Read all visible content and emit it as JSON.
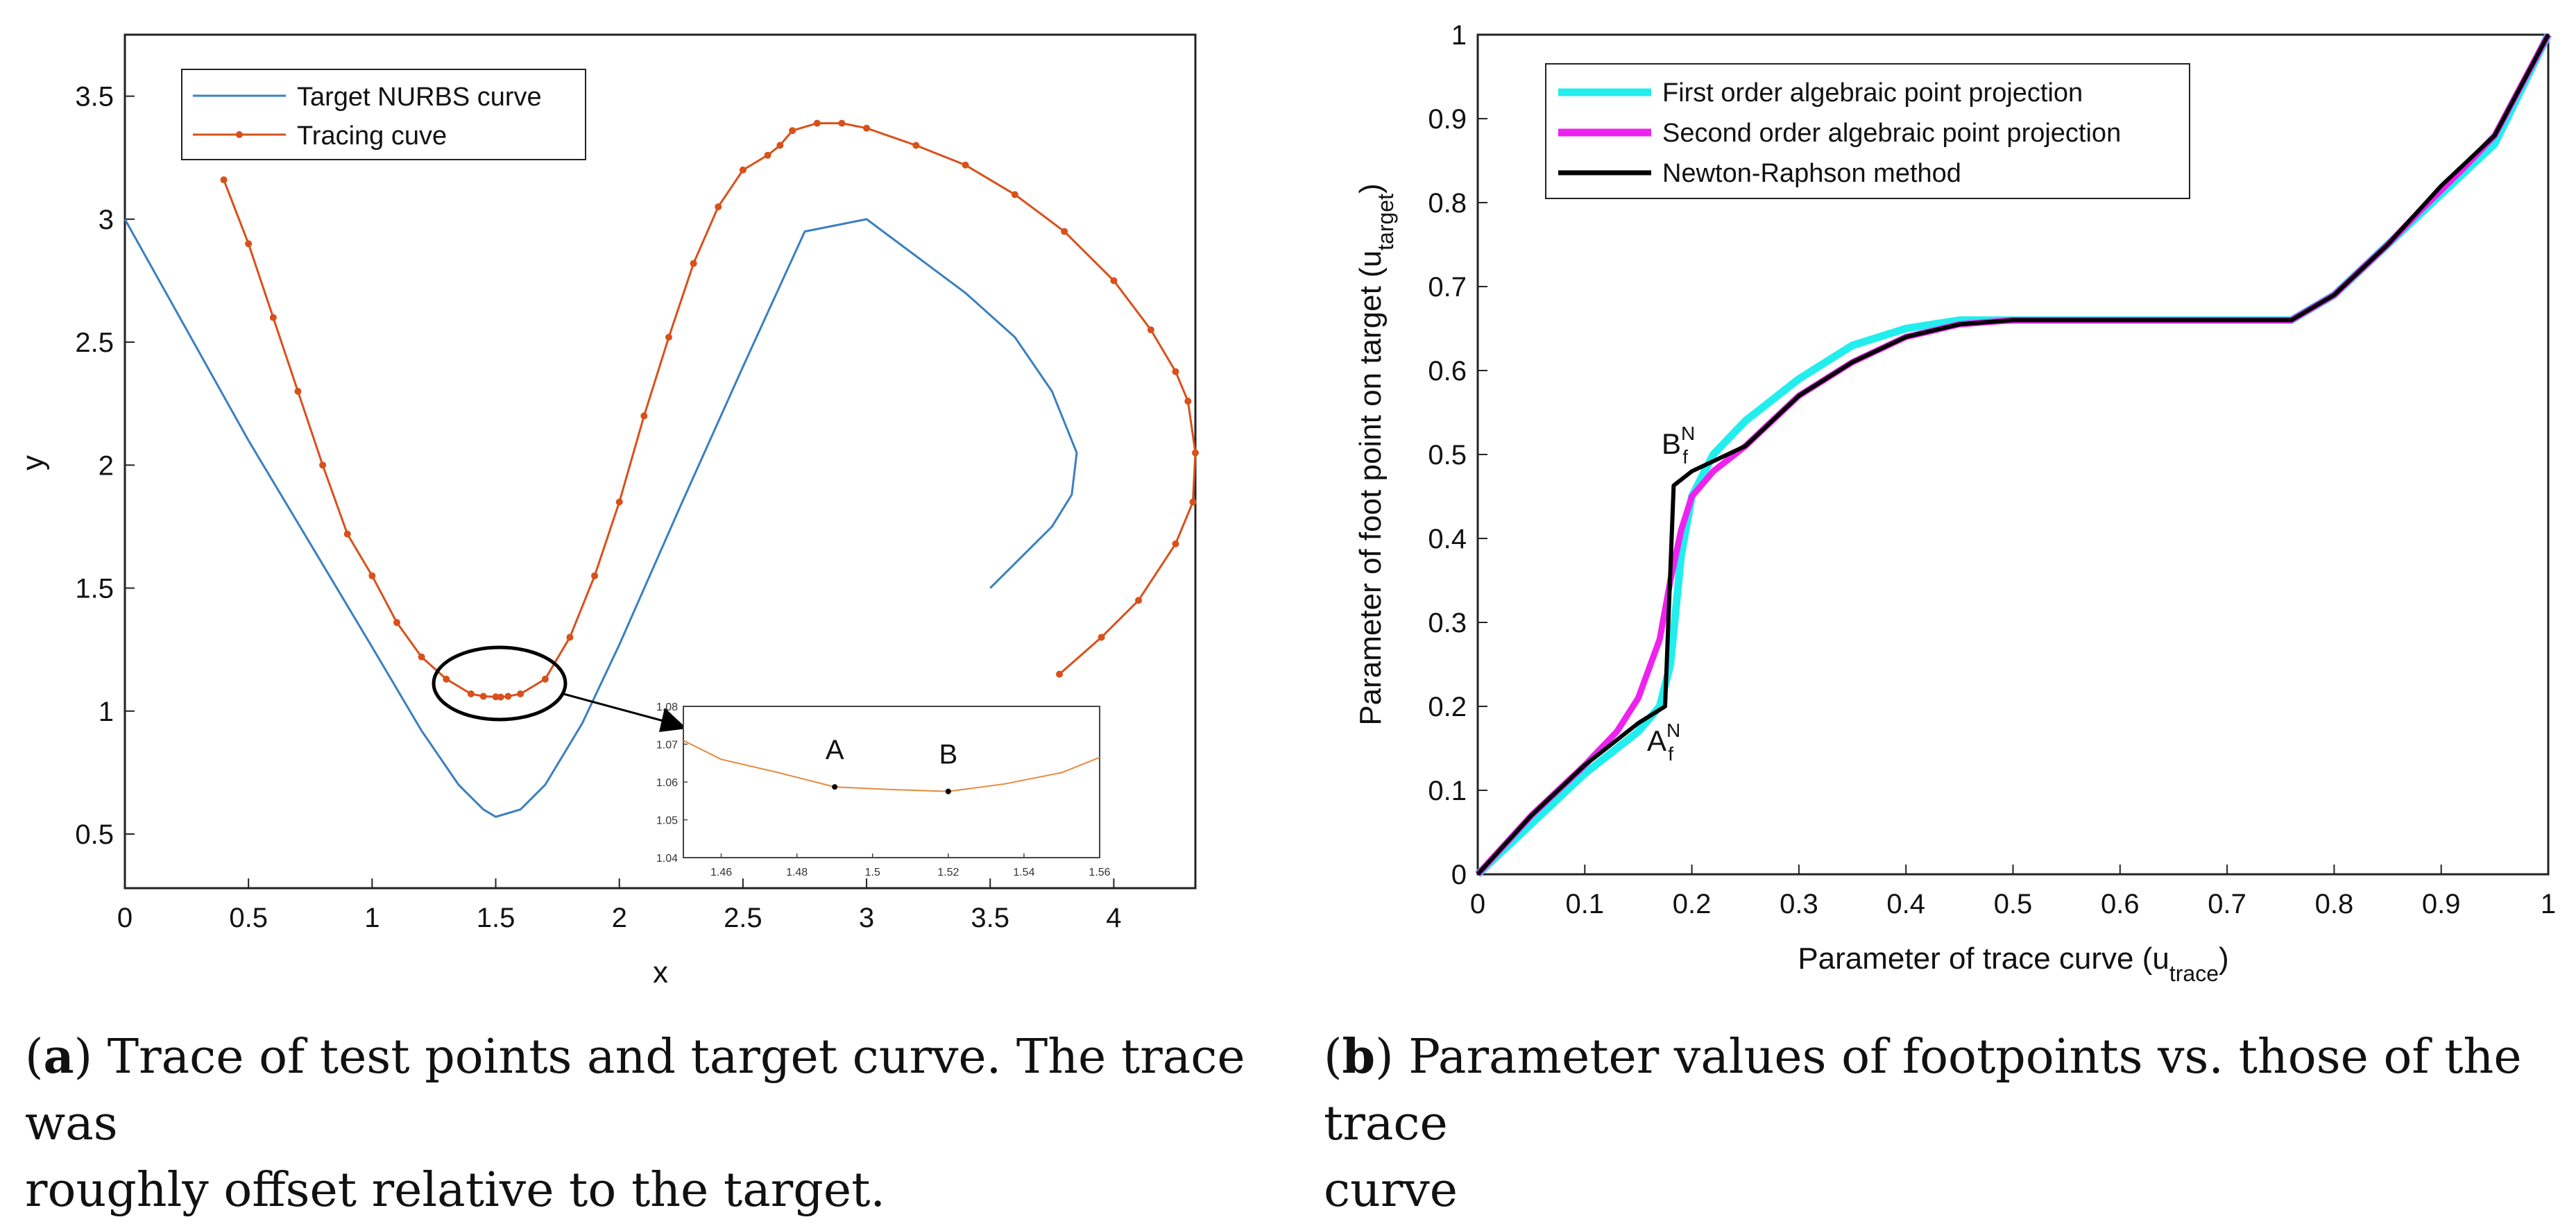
{
  "chart_data": [
    {
      "type": "line",
      "panel": "a",
      "xlabel": "x",
      "ylabel": "y",
      "xlim": [
        0,
        4.33
      ],
      "ylim": [
        0.28,
        3.75
      ],
      "xticks": [
        "0",
        "0.5",
        "1",
        "1.5",
        "2",
        "2.5",
        "3",
        "3.5",
        "4"
      ],
      "yticks": [
        "0.5",
        "1",
        "1.5",
        "2",
        "2.5",
        "3",
        "3.5"
      ],
      "legend_position": "top-left",
      "series": [
        {
          "name": "Target NURBS curve",
          "color": "#3a7fc1",
          "x": [
            0,
            0.25,
            0.5,
            0.75,
            1.0,
            1.2,
            1.35,
            1.45,
            1.5,
            1.6,
            1.7,
            1.85,
            2.0,
            2.25,
            2.5,
            2.75,
            3.0,
            3.2,
            3.4,
            3.6,
            3.75,
            3.85,
            3.83,
            3.75,
            3.6,
            3.5
          ],
          "y": [
            3.0,
            2.55,
            2.1,
            1.68,
            1.26,
            0.92,
            0.7,
            0.6,
            0.57,
            0.6,
            0.7,
            0.95,
            1.27,
            1.84,
            2.4,
            2.95,
            3.0,
            2.85,
            2.7,
            2.52,
            2.3,
            2.05,
            1.88,
            1.75,
            1.6,
            1.5
          ]
        },
        {
          "name": "Tracing cuve",
          "color": "#d9501a",
          "x": [
            0.4,
            0.5,
            0.6,
            0.7,
            0.8,
            0.9,
            1.0,
            1.1,
            1.2,
            1.3,
            1.4,
            1.45,
            1.5,
            1.52,
            1.55,
            1.6,
            1.7,
            1.8,
            1.9,
            2.0,
            2.1,
            2.2,
            2.3,
            2.4,
            2.5,
            2.6,
            2.65,
            2.7,
            2.8,
            2.9,
            3.0,
            3.2,
            3.4,
            3.6,
            3.8,
            4.0,
            4.15,
            4.25,
            4.3,
            4.33,
            4.32,
            4.25,
            4.1,
            3.95,
            3.78
          ],
          "y": [
            3.16,
            2.9,
            2.6,
            2.3,
            2.0,
            1.72,
            1.55,
            1.36,
            1.22,
            1.13,
            1.07,
            1.06,
            1.058,
            1.057,
            1.06,
            1.07,
            1.13,
            1.3,
            1.55,
            1.85,
            2.2,
            2.52,
            2.82,
            3.05,
            3.2,
            3.26,
            3.3,
            3.36,
            3.39,
            3.39,
            3.37,
            3.3,
            3.22,
            3.1,
            2.95,
            2.75,
            2.55,
            2.38,
            2.26,
            2.05,
            1.85,
            1.68,
            1.45,
            1.3,
            1.15
          ]
        }
      ],
      "annotation": "zoom ellipse around minimum of tracing curve",
      "inset": {
        "xlim": [
          1.45,
          1.56
        ],
        "ylim": [
          1.04,
          1.08
        ],
        "xticks": [
          "1.46",
          "1.48",
          "1.5",
          "1.52",
          "1.54",
          "1.56"
        ],
        "yticks": [
          "1.04",
          "1.05",
          "1.06",
          "1.07",
          "1.08"
        ],
        "x": [
          1.45,
          1.46,
          1.475,
          1.49,
          1.505,
          1.52,
          1.535,
          1.55,
          1.56
        ],
        "y": [
          1.071,
          1.066,
          1.0625,
          1.0587,
          1.058,
          1.0575,
          1.0595,
          1.0625,
          1.0665
        ],
        "points": [
          {
            "label": "A",
            "x": 1.49,
            "y": 1.0587
          },
          {
            "label": "B",
            "x": 1.52,
            "y": 1.0575
          }
        ]
      }
    },
    {
      "type": "line",
      "panel": "b",
      "xlabel": "Parameter of trace curve (u",
      "xlabel_sub": "trace",
      "ylabel": "Parameter of foot point on target (u",
      "ylabel_sub": "target",
      "xlim": [
        0,
        1
      ],
      "ylim": [
        0,
        1
      ],
      "xticks": [
        "0",
        "0.1",
        "0.2",
        "0.3",
        "0.4",
        "0.5",
        "0.6",
        "0.7",
        "0.8",
        "0.9",
        "1"
      ],
      "yticks": [
        "0",
        "0.1",
        "0.2",
        "0.3",
        "0.4",
        "0.5",
        "0.6",
        "0.7",
        "0.8",
        "0.9",
        "1"
      ],
      "legend_position": "top-left",
      "series": [
        {
          "name": "First order algebraic point projection",
          "color": "#22eeee",
          "x": [
            0,
            0.05,
            0.1,
            0.15,
            0.17,
            0.18,
            0.19,
            0.2,
            0.22,
            0.25,
            0.3,
            0.35,
            0.4,
            0.45,
            0.5,
            0.6,
            0.7,
            0.76,
            0.8,
            0.85,
            0.9,
            0.95,
            1.0
          ],
          "y": [
            0,
            0.06,
            0.12,
            0.17,
            0.2,
            0.25,
            0.38,
            0.45,
            0.5,
            0.54,
            0.59,
            0.63,
            0.65,
            0.66,
            0.66,
            0.66,
            0.66,
            0.66,
            0.69,
            0.75,
            0.81,
            0.87,
            1.0
          ]
        },
        {
          "name": "Second order algebraic point projection",
          "color": "#ee22ee",
          "x": [
            0,
            0.05,
            0.1,
            0.13,
            0.15,
            0.17,
            0.18,
            0.19,
            0.2,
            0.22,
            0.25,
            0.3,
            0.35,
            0.4,
            0.45,
            0.5,
            0.6,
            0.7,
            0.76,
            0.8,
            0.85,
            0.88,
            0.92,
            0.95,
            1.0
          ],
          "y": [
            0,
            0.07,
            0.13,
            0.17,
            0.21,
            0.28,
            0.35,
            0.41,
            0.45,
            0.48,
            0.51,
            0.57,
            0.61,
            0.64,
            0.655,
            0.66,
            0.66,
            0.66,
            0.66,
            0.69,
            0.75,
            0.79,
            0.84,
            0.88,
            1.0
          ]
        },
        {
          "name": "Newton-Raphson method",
          "color": "#000000",
          "x": [
            0,
            0.05,
            0.1,
            0.15,
            0.175,
            0.183,
            0.2,
            0.25,
            0.3,
            0.35,
            0.4,
            0.45,
            0.5,
            0.6,
            0.7,
            0.76,
            0.8,
            0.85,
            0.9,
            0.95,
            1.0
          ],
          "y": [
            0,
            0.07,
            0.13,
            0.18,
            0.2,
            0.463,
            0.48,
            0.51,
            0.57,
            0.61,
            0.64,
            0.655,
            0.66,
            0.66,
            0.66,
            0.66,
            0.69,
            0.75,
            0.82,
            0.88,
            1.0
          ]
        }
      ],
      "point_labels": [
        {
          "base": "B",
          "sup": "N",
          "sub": "f",
          "x": 0.183,
          "y": 0.463
        },
        {
          "base": "A",
          "sup": "N",
          "sub": "f",
          "x": 0.175,
          "y": 0.2
        }
      ]
    }
  ],
  "captions": {
    "a": {
      "label": "a",
      "line1": ") Trace of test points and target curve. The trace was",
      "line2": "roughly offset relative to the target."
    },
    "b": {
      "label": "b",
      "line1": ") Parameter values of footpoints vs. those of the trace",
      "line2": "curve"
    }
  }
}
